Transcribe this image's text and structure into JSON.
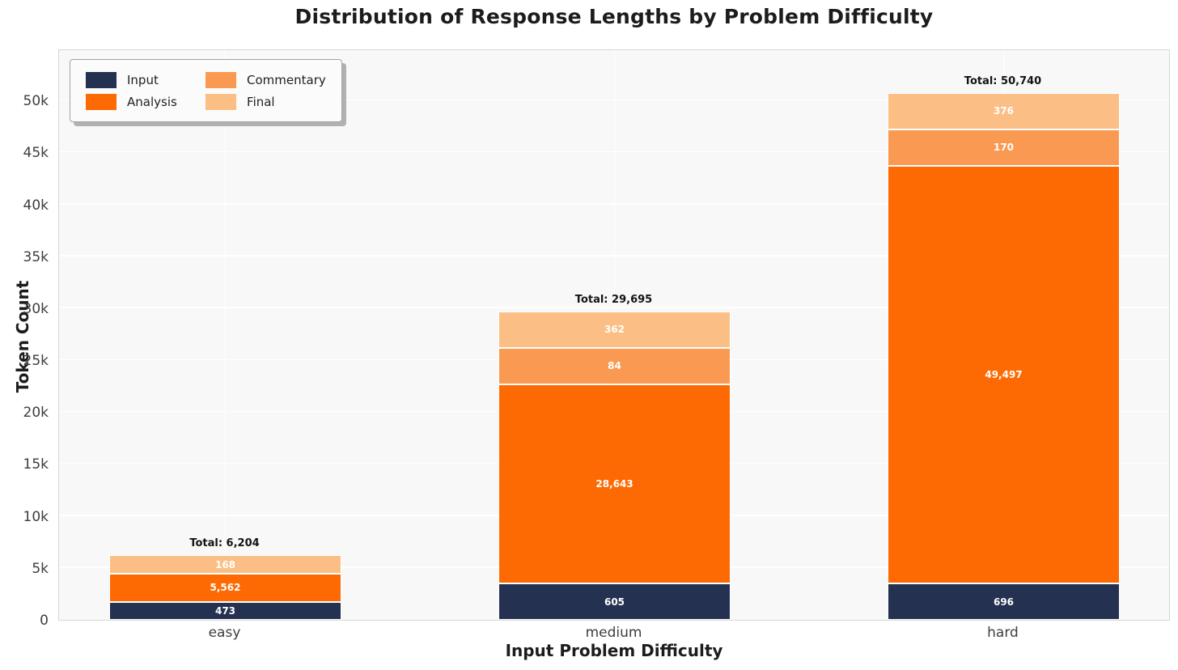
{
  "title": "Distribution of Response Lengths by Problem Difficulty",
  "axes": {
    "x_label": "Input Problem Difficulty",
    "y_label": "Token Count",
    "y_tick_labels": [
      "0",
      "5k",
      "10k",
      "15k",
      "20k",
      "25k",
      "30k",
      "35k",
      "40k",
      "45k",
      "50k"
    ],
    "y_tick_values": [
      0,
      5000,
      10000,
      15000,
      20000,
      25000,
      30000,
      35000,
      40000,
      45000,
      50000
    ],
    "x_tick_labels": [
      "easy",
      "medium",
      "hard"
    ]
  },
  "chart_data": {
    "type": "bar",
    "stacked": true,
    "title": "Distribution of Response Lengths by Problem Difficulty",
    "xlabel": "Input Problem Difficulty",
    "ylabel": "Token Count",
    "categories": [
      "easy",
      "medium",
      "hard"
    ],
    "series": [
      {
        "name": "Input",
        "color": "#253150",
        "values": [
          473,
          5562,
          1,
          168
        ],
        "note": "easy bar segments bottom-to-top"
      },
      {
        "name": "Analysis",
        "color": "#fd6a03",
        "values": [
          605,
          28643,
          84,
          362
        ],
        "note": "medium bar segments bottom-to-top"
      },
      {
        "name": "Commentary",
        "color": "#fa9a52",
        "values": [
          696,
          49497,
          170,
          376
        ],
        "note": "hard bar segments bottom-to-top"
      }
    ],
    "stacks": [
      {
        "category": "easy",
        "segments": {
          "Input": 473,
          "Analysis": 5562,
          "Commentary": 1,
          "Final": 168
        },
        "segment_labels": {
          "Input": "473",
          "Analysis": "5,562",
          "Commentary": "",
          "Final": "168"
        },
        "total": 6204,
        "total_label": "Total: 6,204"
      },
      {
        "category": "medium",
        "segments": {
          "Input": 605,
          "Analysis": 28643,
          "Commentary": 84,
          "Final": 362
        },
        "segment_labels": {
          "Input": "605",
          "Analysis": "28,643",
          "Commentary": "84",
          "Final": "362"
        },
        "total": 29695,
        "total_label": "Total: 29,695"
      },
      {
        "category": "hard",
        "segments": {
          "Input": 696,
          "Analysis": 49497,
          "Commentary": 170,
          "Final": 376
        },
        "segment_labels": {
          "Input": "696",
          "Analysis": "49,497",
          "Commentary": "170",
          "Final": "376"
        },
        "total": 50740,
        "total_label": "Total: 50,740"
      }
    ],
    "legend": {
      "position": "upper-left",
      "items": [
        {
          "label": "Input",
          "color": "#253150"
        },
        {
          "label": "Analysis",
          "color": "#fd6a03"
        },
        {
          "label": "Commentary",
          "color": "#fa9a52"
        },
        {
          "label": "Final",
          "color": "#fbbf85"
        }
      ]
    },
    "ylim": [
      0,
      55000
    ],
    "grid": true,
    "panel_background": "#f8f8f8",
    "gridline_color": "#ffffff"
  }
}
